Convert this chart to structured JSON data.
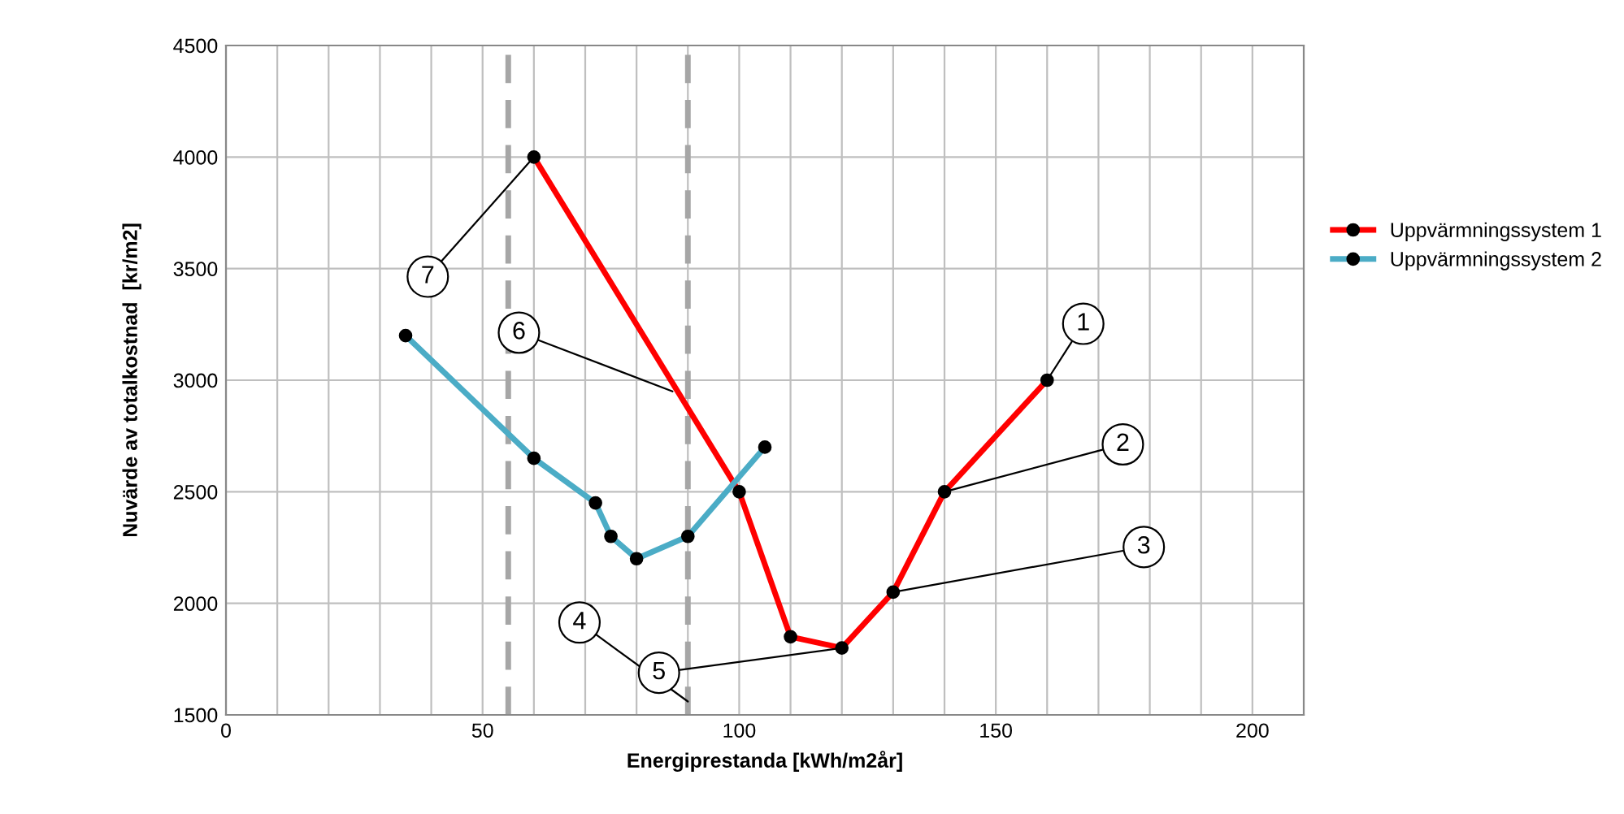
{
  "chart_data": {
    "type": "line",
    "xlabel": "Energiprestanda [kWh/m2år]",
    "ylabel": "Nuvärde av totalkostnad  [kr/m2]",
    "series": [
      {
        "name": "Uppvärmningssystem 1",
        "color": "#ff0000",
        "x": [
          60,
          100,
          110,
          120,
          130,
          140,
          160
        ],
        "values": [
          4000,
          2500,
          1850,
          1800,
          2050,
          2500,
          3000
        ]
      },
      {
        "name": "Uppvärmningssystem 2",
        "color": "#4bacc6",
        "x": [
          35,
          60,
          72,
          75,
          80,
          90,
          105
        ],
        "values": [
          3200,
          2650,
          2450,
          2300,
          2200,
          2300,
          2700
        ]
      }
    ],
    "xlim": [
      0,
      210
    ],
    "ylim": [
      1500,
      4500
    ],
    "xticks": [
      0,
      {
        "value": 10,
        "label": null
      },
      {
        "value": 20,
        "label": null
      },
      {
        "value": 30,
        "label": null
      },
      {
        "value": 40,
        "label": null
      },
      50,
      {
        "value": 60,
        "label": null
      },
      {
        "value": 70,
        "label": null
      },
      {
        "value": 80,
        "label": null
      },
      {
        "value": 90,
        "label": null
      },
      100,
      {
        "value": 110,
        "label": null
      },
      {
        "value": 120,
        "label": null
      },
      {
        "value": 130,
        "label": null
      },
      {
        "value": 140,
        "label": null
      },
      150,
      {
        "value": 160,
        "label": null
      },
      {
        "value": 170,
        "label": null
      },
      {
        "value": 180,
        "label": null
      },
      {
        "value": 190,
        "label": null
      },
      200
    ],
    "yticks": [
      1500,
      2000,
      2500,
      3000,
      3500,
      4000,
      4500
    ],
    "ref_lines": [
      {
        "axis": "x",
        "value": 55,
        "color": "#a6a6a6",
        "line_style": "dashed"
      },
      {
        "axis": "x",
        "value": 90,
        "color": "#a6a6a6",
        "line_style": "dashed"
      }
    ],
    "annotations": [
      {
        "text": "1",
        "x": 160,
        "y": 3000
      },
      {
        "text": "2",
        "x": 140,
        "y": 2500
      },
      {
        "text": "3",
        "x": 130,
        "y": 2050
      },
      {
        "text": "4",
        "x": 90,
        "y": 1560
      },
      {
        "text": "5",
        "x": 120,
        "y": 1800
      },
      {
        "text": "6",
        "x": 87,
        "y": 2950
      },
      {
        "text": "7",
        "x": 60,
        "y": 4000
      }
    ],
    "marker": "circle",
    "line_style": "solid",
    "grid": true,
    "legend": "right"
  }
}
